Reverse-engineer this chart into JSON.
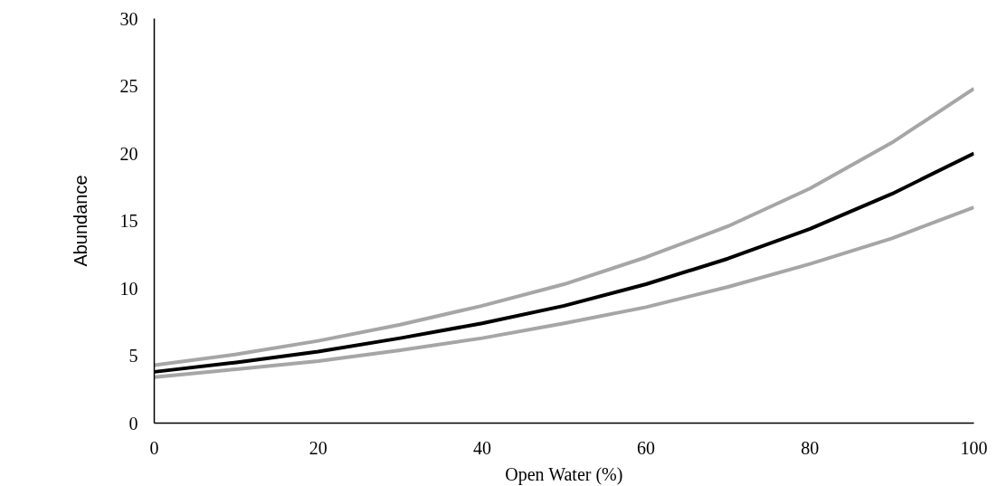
{
  "chart_data": {
    "type": "line",
    "xlabel": "Open Water (%)",
    "ylabel": "Abundance",
    "x": [
      0,
      10,
      20,
      30,
      40,
      50,
      60,
      70,
      80,
      90,
      100
    ],
    "series": [
      {
        "color": "#a6a6a6",
        "values": [
          4.3,
          5.1,
          6.1,
          7.3,
          8.7,
          10.3,
          12.3,
          14.6,
          17.4,
          20.8,
          24.8
        ]
      },
      {
        "color": "#a6a6a6",
        "values": [
          3.4,
          4.0,
          4.6,
          5.4,
          6.3,
          7.4,
          8.6,
          10.1,
          11.8,
          13.7,
          16.0
        ]
      },
      {
        "color": "#000000",
        "values": [
          3.8,
          4.5,
          5.3,
          6.3,
          7.4,
          8.7,
          10.3,
          12.2,
          14.4,
          17.0,
          20.0
        ]
      }
    ],
    "xlim": [
      0,
      100
    ],
    "ylim": [
      0,
      30
    ],
    "xticks": [
      0,
      20,
      40,
      60,
      80,
      100
    ],
    "yticks": [
      0,
      5,
      10,
      15,
      20,
      25,
      30
    ]
  }
}
